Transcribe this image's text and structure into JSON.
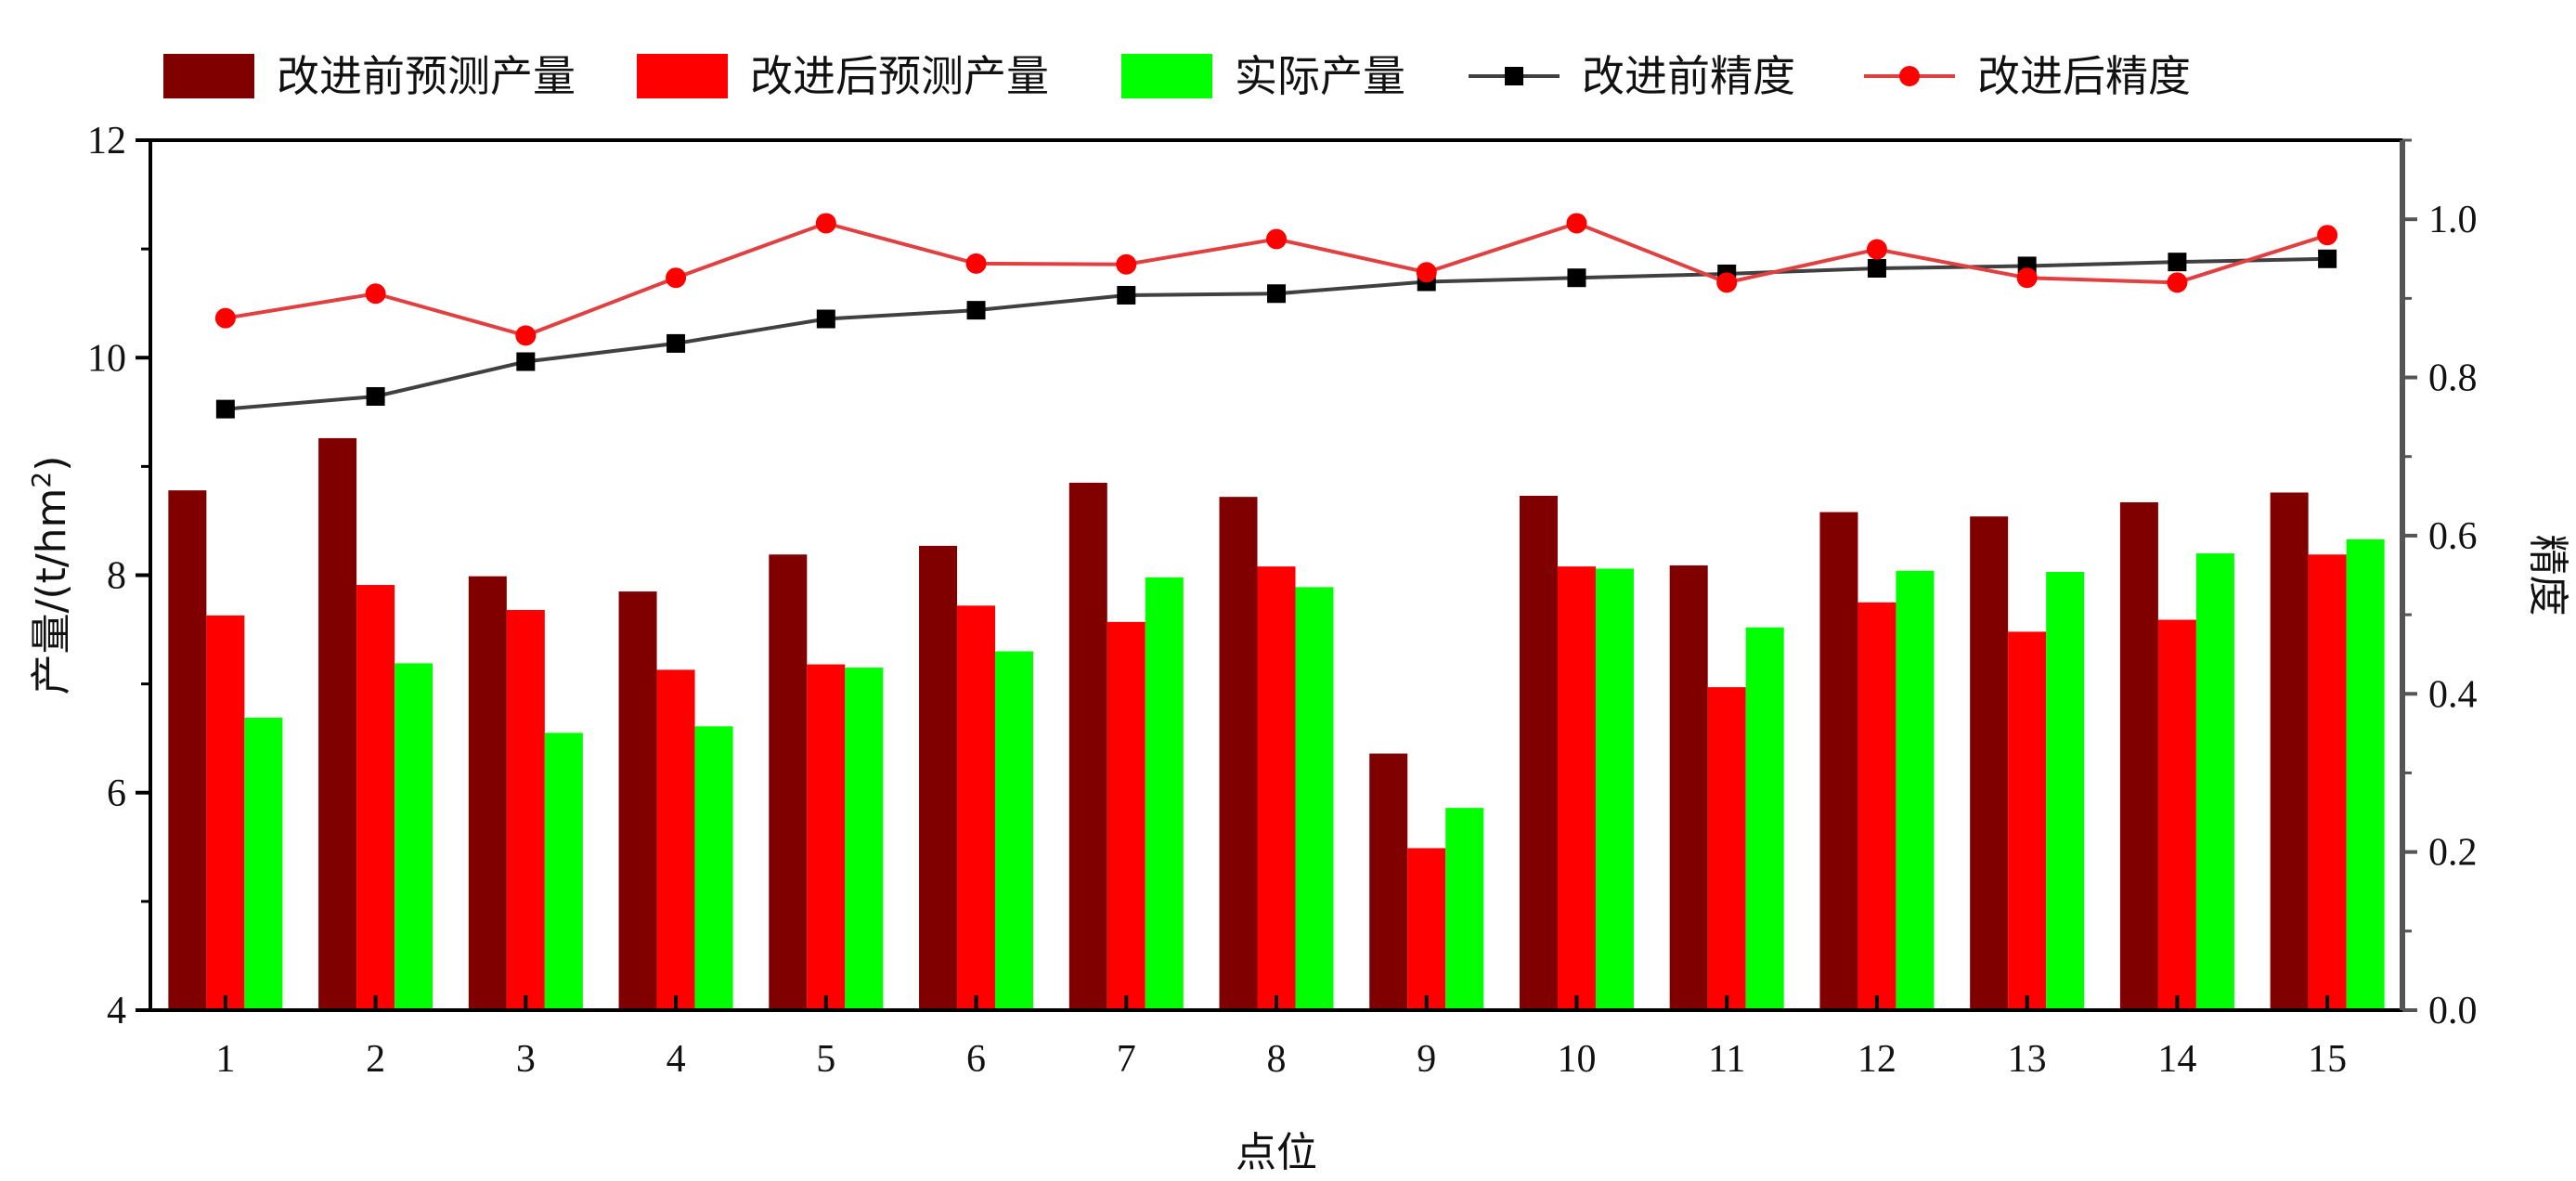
{
  "chart_data": {
    "type": "bar",
    "categories": [
      "1",
      "2",
      "3",
      "4",
      "5",
      "6",
      "7",
      "8",
      "9",
      "10",
      "11",
      "12",
      "13",
      "14",
      "15"
    ],
    "xlabel": "点位",
    "ylabel": "产量/(t/hm²)",
    "ylabel_parts": [
      "产量/(t/hm",
      "2",
      ")"
    ],
    "y2label": "精度",
    "ylim": [
      4,
      12
    ],
    "yticks": [
      4,
      6,
      8,
      10,
      12
    ],
    "y2lim": [
      0.0,
      1.1
    ],
    "y2ticks": [
      "0.0",
      "0.2",
      "0.4",
      "0.6",
      "0.8",
      "1.0"
    ],
    "grid": false,
    "legend_position": "top",
    "series": [
      {
        "name": "改进前预测产量",
        "kind": "bar",
        "color": "#800000",
        "axis": "left",
        "values": [
          8.78,
          9.26,
          7.99,
          7.85,
          8.19,
          8.27,
          8.85,
          8.72,
          6.36,
          8.73,
          8.09,
          8.58,
          8.54,
          8.67,
          8.76
        ]
      },
      {
        "name": "改进后预测产量",
        "kind": "bar",
        "color": "#ff0000",
        "axis": "left",
        "values": [
          7.63,
          7.91,
          7.68,
          7.13,
          7.18,
          7.72,
          7.57,
          8.08,
          5.49,
          8.08,
          6.97,
          7.75,
          7.48,
          7.59,
          8.19
        ]
      },
      {
        "name": "实际产量",
        "kind": "bar",
        "color": "#00ff00",
        "axis": "left",
        "values": [
          6.69,
          7.19,
          6.55,
          6.61,
          7.15,
          7.3,
          7.98,
          7.89,
          5.86,
          8.06,
          7.52,
          8.04,
          8.03,
          8.2,
          8.33
        ]
      },
      {
        "name": "改进前精度",
        "kind": "line",
        "color": "#404040",
        "marker": "square",
        "axis": "right",
        "values": [
          0.76,
          0.776,
          0.82,
          0.843,
          0.874,
          0.885,
          0.904,
          0.906,
          0.921,
          0.926,
          0.931,
          0.938,
          0.941,
          0.946,
          0.95
        ]
      },
      {
        "name": "改进后精度",
        "kind": "line",
        "color": "#e04040",
        "marker": "circle",
        "axis": "right",
        "values": [
          0.875,
          0.906,
          0.853,
          0.926,
          0.995,
          0.944,
          0.943,
          0.975,
          0.933,
          0.995,
          0.92,
          0.962,
          0.926,
          0.92,
          0.98
        ]
      }
    ]
  }
}
